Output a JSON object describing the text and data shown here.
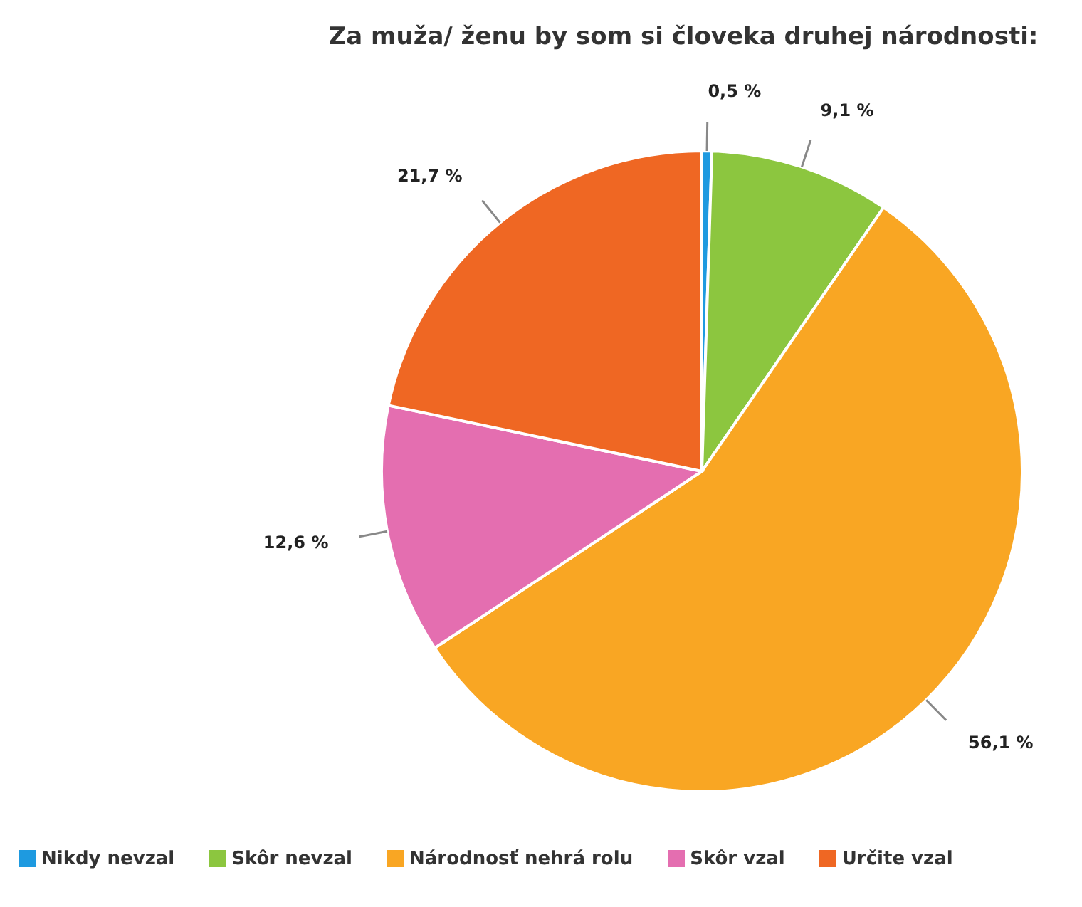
{
  "chart_data": {
    "type": "pie",
    "title": "Za muža/ ženu by som si človeka druhej národnosti:",
    "categories": [
      "Nikdy nevzal",
      "Skôr nevzal",
      "Národnosť nehrá rolu",
      "Skôr vzal",
      "Určite vzal"
    ],
    "values": [
      0.5,
      9.1,
      56.1,
      12.6,
      21.7
    ],
    "colors": [
      "#1e9ae0",
      "#8cc63f",
      "#f9a623",
      "#e46eb0",
      "#ef6723"
    ],
    "value_labels": [
      "0,5 %",
      "9,1 %",
      "56,1 %",
      "12,6 %",
      "21,7 %"
    ],
    "legend": "bottom"
  }
}
